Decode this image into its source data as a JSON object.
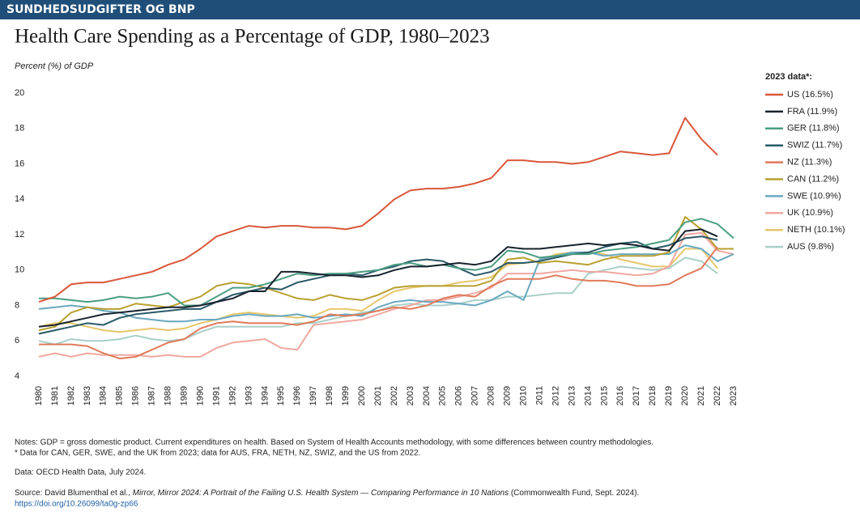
{
  "header": "SUNDHEDSUDGIFTER OG BNP",
  "chart_data": {
    "type": "line",
    "title": "Health Care Spending as a Percentage of GDP, 1980–2023",
    "y_label": "Percent (%) of GDP",
    "legend_title": "2023 data*:",
    "x": [
      1980,
      1981,
      1982,
      1983,
      1984,
      1985,
      1986,
      1987,
      1988,
      1989,
      1990,
      1991,
      1992,
      1993,
      1994,
      1995,
      1996,
      1997,
      1998,
      1999,
      2000,
      2001,
      2002,
      2003,
      2004,
      2005,
      2006,
      2007,
      2008,
      2009,
      2010,
      2011,
      2012,
      2013,
      2014,
      2015,
      2016,
      2017,
      2018,
      2019,
      2020,
      2021,
      2022,
      2023
    ],
    "xlim": [
      1980,
      2023
    ],
    "xticks": [
      1980,
      1981,
      1982,
      1983,
      1984,
      1985,
      1986,
      1987,
      1988,
      1989,
      1990,
      1991,
      1992,
      1993,
      1994,
      1995,
      1996,
      1997,
      1998,
      1999,
      2000,
      2001,
      2002,
      2003,
      2004,
      2005,
      2006,
      2007,
      2008,
      2009,
      2010,
      2011,
      2012,
      2013,
      2014,
      2015,
      2016,
      2017,
      2018,
      2019,
      2020,
      2021,
      2022,
      2023
    ],
    "ylim": [
      4,
      20
    ],
    "yticks": [
      4,
      6,
      8,
      10,
      12,
      14,
      16,
      18,
      20
    ],
    "grid": false,
    "legend": "right",
    "series": [
      {
        "name": "US (16.5%)",
        "color": "#d9573a",
        "values": [
          8.2,
          8.5,
          9.2,
          9.3,
          9.3,
          9.5,
          9.7,
          9.9,
          10.3,
          10.6,
          11.2,
          11.9,
          12.2,
          12.5,
          12.4,
          12.5,
          12.5,
          12.4,
          12.4,
          12.3,
          12.5,
          13.2,
          14.0,
          14.5,
          14.6,
          14.6,
          14.7,
          14.9,
          15.2,
          16.2,
          16.2,
          16.1,
          16.1,
          16.0,
          16.1,
          16.4,
          16.7,
          16.6,
          16.5,
          16.6,
          18.6,
          17.4,
          16.5,
          null
        ]
      },
      {
        "name": "FRA (11.9%)",
        "color": "#17222e",
        "values": [
          6.8,
          6.9,
          7.1,
          7.3,
          7.5,
          7.6,
          7.7,
          7.8,
          7.9,
          7.9,
          8.0,
          8.2,
          8.4,
          8.8,
          8.8,
          9.9,
          9.9,
          9.8,
          9.7,
          9.7,
          9.6,
          9.7,
          10.0,
          10.2,
          10.2,
          10.3,
          10.4,
          10.3,
          10.5,
          11.3,
          11.2,
          11.2,
          11.3,
          11.4,
          11.5,
          11.4,
          11.5,
          11.4,
          11.2,
          11.1,
          12.2,
          12.3,
          11.9,
          null
        ]
      },
      {
        "name": "GER (11.8%)",
        "color": "#4a9e82",
        "values": [
          8.4,
          8.4,
          8.3,
          8.2,
          8.3,
          8.5,
          8.4,
          8.5,
          8.7,
          8.0,
          8.0,
          8.5,
          9.0,
          9.0,
          9.2,
          9.5,
          9.8,
          9.7,
          9.8,
          9.8,
          9.9,
          10.0,
          10.3,
          10.4,
          10.2,
          10.3,
          10.1,
          10.0,
          10.2,
          11.1,
          11.0,
          10.7,
          10.8,
          10.9,
          10.9,
          11.1,
          11.2,
          11.3,
          11.5,
          11.7,
          12.7,
          12.9,
          12.6,
          11.8
        ]
      },
      {
        "name": "SWIZ (11.7%)",
        "color": "#2a5a68",
        "values": [
          6.4,
          6.6,
          6.8,
          7.0,
          6.9,
          7.3,
          7.5,
          7.6,
          7.7,
          7.8,
          7.8,
          8.2,
          8.6,
          8.8,
          9.0,
          8.9,
          9.3,
          9.5,
          9.7,
          9.8,
          9.7,
          10.0,
          10.2,
          10.5,
          10.6,
          10.5,
          10.1,
          9.7,
          9.9,
          10.4,
          10.4,
          10.5,
          10.7,
          10.9,
          11.0,
          11.3,
          11.5,
          11.6,
          11.2,
          11.4,
          11.8,
          11.9,
          11.7,
          null
        ]
      },
      {
        "name": "NZ (11.3%)",
        "color": "#e07a5a",
        "values": [
          5.8,
          5.8,
          5.8,
          5.7,
          5.3,
          5.0,
          5.1,
          5.5,
          5.9,
          6.1,
          6.7,
          7.0,
          7.1,
          7.0,
          7.0,
          7.0,
          6.9,
          7.1,
          7.5,
          7.4,
          7.5,
          7.7,
          7.9,
          7.8,
          8.0,
          8.4,
          8.6,
          8.5,
          9.1,
          9.5,
          9.5,
          9.5,
          9.7,
          9.5,
          9.4,
          9.4,
          9.3,
          9.1,
          9.1,
          9.2,
          9.7,
          10.1,
          11.3,
          null
        ]
      },
      {
        "name": "CAN (11.2%)",
        "color": "#b8a030",
        "values": [
          6.6,
          6.8,
          7.6,
          7.9,
          7.8,
          7.8,
          8.1,
          8.0,
          7.9,
          8.2,
          8.5,
          9.1,
          9.3,
          9.2,
          9.0,
          8.7,
          8.4,
          8.3,
          8.6,
          8.4,
          8.3,
          8.6,
          9.0,
          9.1,
          9.1,
          9.1,
          9.1,
          9.1,
          9.4,
          10.6,
          10.7,
          10.4,
          10.5,
          10.4,
          10.3,
          10.6,
          10.8,
          10.8,
          10.8,
          11.0,
          13.0,
          12.3,
          11.2,
          11.2
        ]
      },
      {
        "name": "SWE (10.9%)",
        "color": "#6aa8c0",
        "values": [
          7.8,
          7.9,
          8.0,
          7.9,
          7.7,
          7.6,
          7.3,
          7.2,
          7.1,
          7.1,
          7.2,
          7.2,
          7.4,
          7.5,
          7.4,
          7.4,
          7.5,
          7.3,
          7.4,
          7.5,
          7.4,
          7.9,
          8.2,
          8.3,
          8.2,
          8.2,
          8.1,
          8.0,
          8.3,
          8.8,
          8.3,
          10.6,
          10.8,
          11.0,
          11.0,
          10.8,
          10.9,
          10.9,
          10.9,
          10.9,
          11.4,
          11.2,
          10.5,
          10.9
        ]
      },
      {
        "name": "UK (10.9%)",
        "color": "#f0a8a0",
        "values": [
          5.1,
          5.3,
          5.1,
          5.3,
          5.2,
          5.2,
          5.2,
          5.1,
          5.2,
          5.1,
          5.1,
          5.6,
          5.9,
          6.0,
          6.1,
          5.6,
          5.5,
          6.9,
          7.0,
          7.1,
          7.2,
          7.5,
          7.8,
          8.0,
          8.3,
          8.3,
          8.5,
          8.7,
          9.0,
          9.8,
          9.8,
          9.8,
          9.9,
          10.0,
          9.9,
          9.9,
          9.8,
          9.7,
          9.8,
          10.2,
          12.0,
          12.1,
          11.1,
          10.9
        ]
      },
      {
        "name": "NETH (10.1%)",
        "color": "#e6c66c",
        "values": [
          6.8,
          7.0,
          7.0,
          6.8,
          6.6,
          6.5,
          6.6,
          6.7,
          6.6,
          6.7,
          7.0,
          7.2,
          7.5,
          7.6,
          7.5,
          7.4,
          7.3,
          7.4,
          7.8,
          7.8,
          7.7,
          8.3,
          8.8,
          9.0,
          9.1,
          9.1,
          9.3,
          9.4,
          9.6,
          10.3,
          10.4,
          10.5,
          10.9,
          11.0,
          11.0,
          10.9,
          10.6,
          10.4,
          10.2,
          10.2,
          11.2,
          11.2,
          10.1,
          null
        ]
      },
      {
        "name": "AUS (9.8%)",
        "color": "#a8d0c8",
        "values": [
          6.0,
          5.8,
          6.1,
          6.0,
          6.0,
          6.1,
          6.3,
          6.1,
          6.0,
          6.1,
          6.5,
          6.8,
          6.8,
          6.8,
          6.8,
          6.8,
          7.0,
          7.0,
          7.2,
          7.4,
          7.6,
          7.7,
          8.0,
          8.1,
          8.0,
          8.0,
          8.1,
          8.3,
          8.3,
          8.5,
          8.5,
          8.6,
          8.7,
          8.7,
          9.8,
          10.0,
          10.2,
          10.1,
          10.0,
          10.1,
          10.7,
          10.5,
          9.8,
          null
        ]
      }
    ]
  },
  "notes": [
    "Notes: GDP = gross domestic product. Current expenditures on health. Based on System of Health Accounts methodology, with some differences between country methodologies.",
    "* Data for CAN, GER, SWE, and the UK from 2023; data for AUS, FRA, NETH, NZ, SWIZ, and the US from 2022."
  ],
  "data_source": "Data: OECD Health Data, July 2024.",
  "source": [
    "Source: David Blumenthal et al., ",
    "Mirror, Mirror 2024: A Portrait of the Failing U.S. Health System — Comparing Performance in 10 Nations",
    " (Commonwealth Fund, Sept. 2024)."
  ],
  "doi": "https://doi.org/10.26099/ta0g-zp66"
}
